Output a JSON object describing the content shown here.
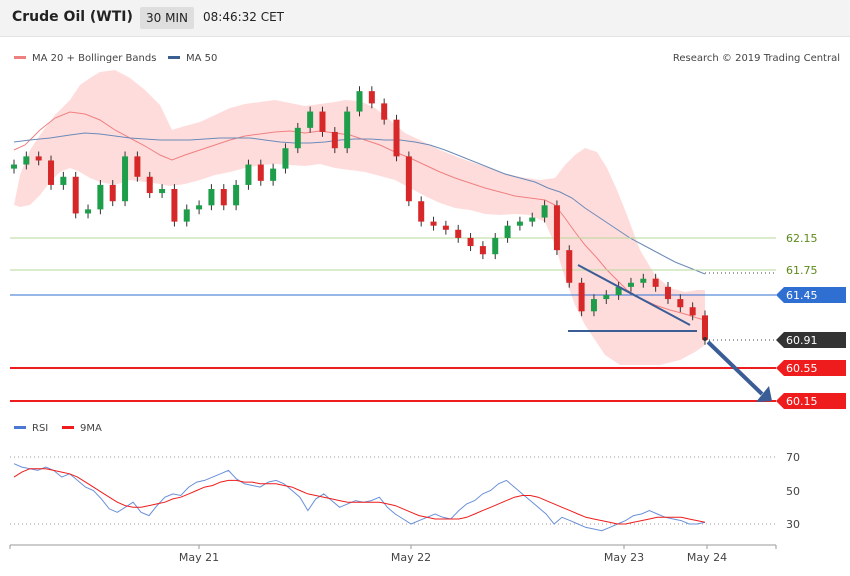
{
  "header": {
    "title": "Crude Oil (WTI)",
    "timeframe": "30 MIN",
    "time": "08:46:32 CET"
  },
  "legend": {
    "ma20": "MA 20 + Bollinger Bands",
    "ma50": "MA 50",
    "copyright": "Research © 2019 Trading Central"
  },
  "rsi_legend": {
    "rsi": "RSI",
    "ma9": "9MA"
  },
  "colors": {
    "up": "#1e9e4a",
    "down": "#d62828",
    "ma20": "#ef8080",
    "band": "#ffd6d6",
    "ma50": "#5b7fa8",
    "blue_level": "#2f6fd1",
    "red_level": "#ee1c1c",
    "green_level": "#9fcf7a"
  },
  "chart_data": [
    {
      "type": "line",
      "title": "Crude Oil (WTI)",
      "x_ticks": [
        "May 21",
        "May 22",
        "May 23",
        "May 24"
      ],
      "series": [
        {
          "name": "Crude Oil (WTI)",
          "values": [
            63.05,
            63.15,
            63.1,
            62.8,
            62.9,
            62.45,
            62.5,
            62.8,
            62.6,
            63.15,
            62.9,
            62.7,
            62.75,
            62.35,
            62.5,
            62.55,
            62.75,
            62.55,
            62.8,
            63.05,
            62.85,
            63.0,
            63.25,
            63.5,
            63.7,
            63.45,
            63.25,
            63.7,
            63.95,
            63.8,
            63.6,
            63.15,
            62.6,
            62.35,
            62.3,
            62.25,
            62.15,
            62.05,
            61.95,
            62.15,
            62.3,
            62.35,
            62.4,
            62.55,
            62.0,
            61.6,
            61.25,
            61.4,
            61.45,
            61.55,
            61.6,
            61.65,
            61.55,
            61.4,
            61.3,
            61.2,
            60.9
          ]
        },
        {
          "name": "MA 20 + Bollinger Bands"
        },
        {
          "name": "MA 50"
        }
      ],
      "levels": [
        {
          "value": 62.15,
          "label": "62.15",
          "style": "green"
        },
        {
          "value": 61.75,
          "label": "61.75",
          "style": "green"
        },
        {
          "value": 61.45,
          "label": "61.45",
          "style": "blue"
        },
        {
          "value": 60.91,
          "label": "60.91",
          "style": "current"
        },
        {
          "value": 60.55,
          "label": "60.55",
          "style": "red"
        },
        {
          "value": 60.15,
          "label": "60.15",
          "style": "red"
        }
      ],
      "last_price": 60.91
    },
    {
      "type": "line",
      "title": "RSI",
      "ylim": [
        20,
        80
      ],
      "y_ticks": [
        70,
        50,
        30
      ],
      "series": [
        {
          "name": "RSI",
          "values": [
            66,
            64,
            63,
            62,
            64,
            62,
            58,
            60,
            56,
            52,
            50,
            45,
            39,
            37,
            40,
            43,
            37,
            35,
            41,
            46,
            48,
            47,
            52,
            55,
            56,
            58,
            60,
            62,
            57,
            54,
            53,
            52,
            55,
            56,
            54,
            50,
            46,
            38,
            45,
            48,
            44,
            40,
            42,
            44,
            43,
            44,
            46,
            40,
            36,
            33,
            30,
            32,
            34,
            36,
            34,
            33,
            38,
            42,
            44,
            48,
            50,
            54,
            56,
            52,
            48,
            44,
            40,
            36,
            30,
            34,
            32,
            30,
            28,
            27,
            26,
            28,
            30,
            32,
            35,
            36,
            38,
            36,
            34,
            33,
            32,
            30,
            30,
            31
          ]
        },
        {
          "name": "9MA",
          "values": [
            58,
            61,
            63,
            63,
            63,
            62,
            61,
            60,
            58,
            55,
            52,
            49,
            46,
            43,
            41,
            40,
            40,
            41,
            42,
            43,
            45,
            46,
            48,
            50,
            52,
            53,
            55,
            56,
            56,
            55,
            55,
            54,
            54,
            54,
            53,
            52,
            50,
            48,
            47,
            46,
            45,
            44,
            43,
            43,
            43,
            43,
            43,
            42,
            41,
            39,
            37,
            35,
            34,
            33,
            33,
            33,
            33,
            34,
            36,
            38,
            40,
            42,
            44,
            46,
            47,
            47,
            46,
            44,
            42,
            40,
            38,
            36,
            34,
            33,
            32,
            31,
            30,
            30,
            31,
            32,
            33,
            34,
            34,
            34,
            34,
            33,
            32,
            31
          ]
        }
      ]
    }
  ]
}
